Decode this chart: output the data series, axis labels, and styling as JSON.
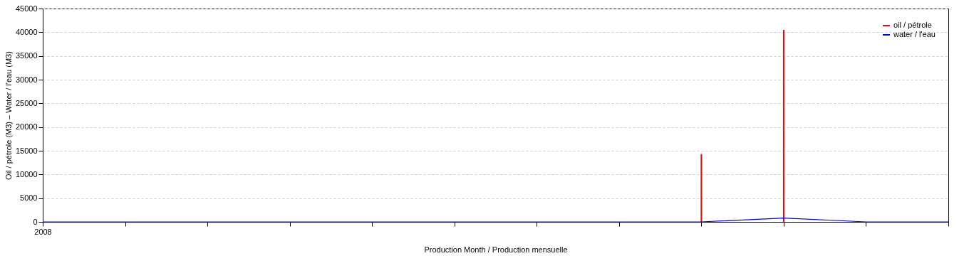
{
  "chart_data": {
    "type": "line",
    "xlabel": "Production Month / Production mensuelle",
    "ylabel": "Oil / pétrole (M3)  –  Water / l'eau (M3)",
    "categories": [
      "2008",
      null,
      null,
      null,
      null,
      null,
      null,
      null,
      null,
      null,
      null,
      null
    ],
    "series": [
      {
        "name": "oil / pétrole",
        "type": "bar",
        "color": "#ff0000",
        "values": [
          0,
          0,
          0,
          0,
          0,
          0,
          0,
          0,
          14300,
          40500,
          0,
          0
        ]
      },
      {
        "name": "water / l'eau",
        "color": "#0000ff",
        "values": [
          0,
          0,
          0,
          0,
          0,
          0,
          0,
          0,
          0,
          800,
          0,
          0
        ]
      }
    ],
    "ylim": [
      0,
      45000
    ],
    "yticks": [
      0,
      5000,
      10000,
      15000,
      20000,
      25000,
      30000,
      35000,
      40000,
      45000
    ],
    "grid": "y",
    "legend": "top right",
    "line_style": "solid",
    "marker": "none"
  }
}
